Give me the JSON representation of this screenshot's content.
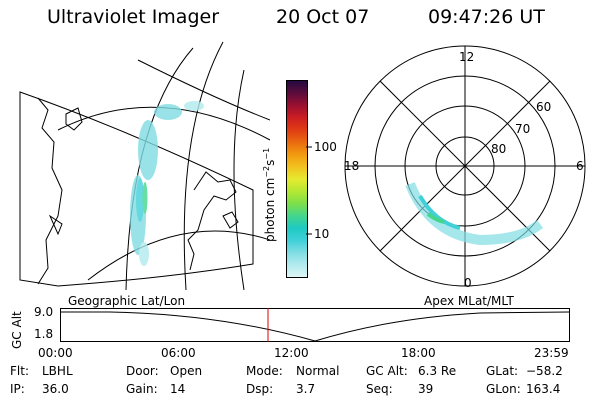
{
  "header": {
    "instrument": "Ultraviolet Imager",
    "date": "20 Oct 07",
    "time": "09:47:26 UT"
  },
  "colorbar": {
    "unit_label": "photon cm",
    "unit_exp1": "−2",
    "unit_s": "s",
    "unit_exp2": "−1",
    "ticks": [
      "100",
      "10"
    ],
    "colors": [
      "#dff5f6",
      "#b2ebee",
      "#80dde3",
      "#3fd0d8",
      "#1fcac3",
      "#44d68c",
      "#7ee04a",
      "#b5e833",
      "#e6ea2f",
      "#f2c21e",
      "#f29a10",
      "#ea6a10",
      "#e03c14",
      "#cc1e22",
      "#9b1030",
      "#5c0c3c",
      "#260a40"
    ]
  },
  "geo_panel": {
    "caption": "Geographic Lat/Lon"
  },
  "polar_panel": {
    "caption": "Apex MLat/MLT",
    "mlt_labels": {
      "top": "12",
      "left": "18",
      "right": "6",
      "bottom": "0"
    },
    "lat_labels": [
      "60",
      "70",
      "80"
    ]
  },
  "altitude_strip": {
    "axis_label": "GC Alt",
    "ymax": "9.0",
    "ymin": "1.8",
    "time_ticks": [
      "00:00",
      "06:00",
      "12:00",
      "18:00",
      "23:59"
    ],
    "marker_color": "#e00000"
  },
  "footer": {
    "row1": [
      {
        "key": "Flt:",
        "val": "LBHL"
      },
      {
        "key": "Door:",
        "val": "Open"
      },
      {
        "key": "Mode:",
        "val": "Normal"
      },
      {
        "key": "GC Alt:",
        "val": "6.3 Re"
      },
      {
        "key": "GLat:",
        "val": "−58.2"
      }
    ],
    "row2": [
      {
        "key": "IP:",
        "val": "36.0"
      },
      {
        "key": "Gain:",
        "val": "14"
      },
      {
        "key": "Dsp:",
        "val": "3.7"
      },
      {
        "key": "Seq:",
        "val": "39"
      },
      {
        "key": "GLon:",
        "val": "163.4"
      }
    ]
  }
}
